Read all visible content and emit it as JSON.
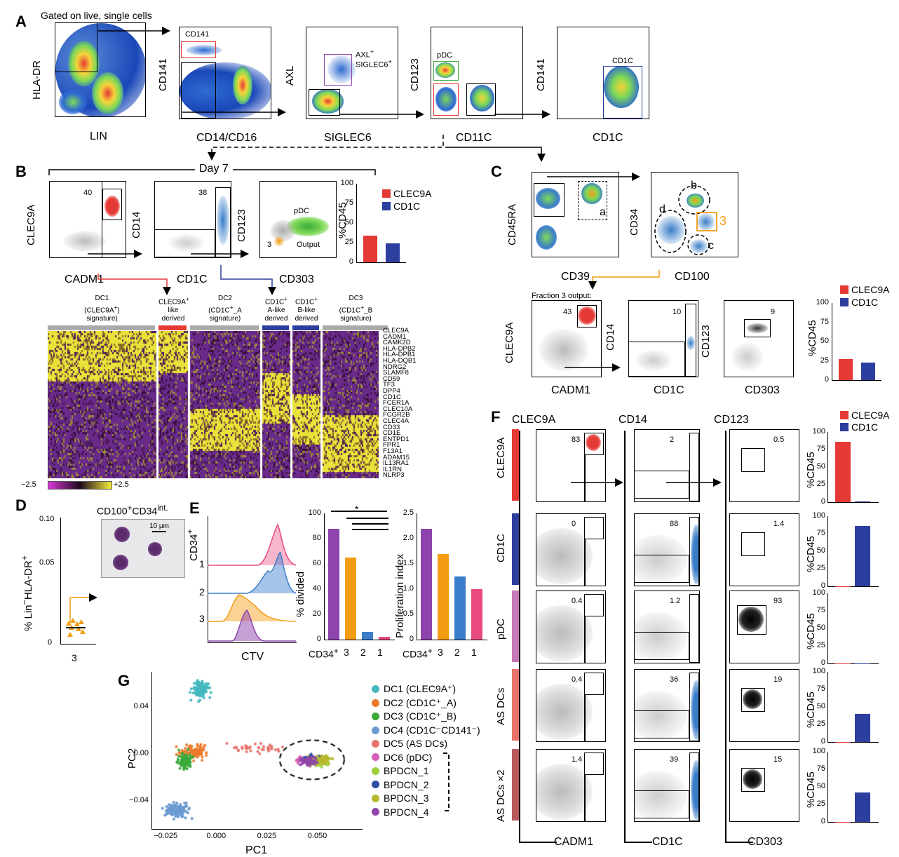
{
  "panelA": {
    "letter": "A",
    "gated": "Gated on live, single cells",
    "p1": {
      "x": "LIN",
      "y": "HLA-DR"
    },
    "p2": {
      "x": "CD14/CD16",
      "y": "CD141",
      "gate": "CD141"
    },
    "p3": {
      "x": "SIGLEC6",
      "y": "AXL",
      "gate1": "AXL",
      "gate1sup": "+",
      "gate2": "SIGLEC6",
      "gate2sup": "+"
    },
    "p4": {
      "x": "CD11C",
      "y": "CD123",
      "gate": "pDC"
    },
    "p5": {
      "x": "CD1C",
      "y": "CD141",
      "gate": "CD1C"
    },
    "ticks": {
      "t105": "10",
      "t104": "10",
      "t103": "10",
      "t0": "0",
      "tneg": "-10"
    }
  },
  "panelB": {
    "letter": "B",
    "day": "Day 7",
    "p1": {
      "x": "CADM1",
      "y": "CLEC9A",
      "num": "40"
    },
    "p2": {
      "x": "CD1C",
      "y": "CD14",
      "num": "38"
    },
    "p3": {
      "x": "CD303",
      "y": "CD123",
      "pdc": "pDC",
      "three": "3",
      "output": "Output"
    },
    "bar": {
      "y": "%CD45",
      "ticks": [
        "100",
        "75",
        "50",
        "25",
        "0"
      ],
      "legend": [
        "CLEC9A",
        "CD1C"
      ],
      "values": [
        34,
        24
      ]
    },
    "heat": {
      "groups": [
        {
          "l1": "DC1",
          "l2": "(CLEC9A",
          "sup": "+",
          "l3": "signature)"
        },
        {
          "l1": "CLEC9A",
          "sup": "+",
          "l2": "like",
          "l3": "derived"
        },
        {
          "l1": "DC2",
          "l2": "(CD1C",
          "sup": "+",
          "l2b": "_A",
          "l3": "signature)"
        },
        {
          "l1": "CD1C",
          "sup": "+",
          "l2": "A-like",
          "l3": "derived"
        },
        {
          "l1": "CD1C",
          "sup": "+",
          "l2": "B-like",
          "l3": "derived"
        },
        {
          "l1": "DC3",
          "l2": "(CD1C",
          "sup": "+",
          "l2b": "_B",
          "l3": "signature)"
        }
      ],
      "genes": [
        "CLEC9A",
        "CADM1",
        "CAMK2D",
        "HLA-DPB2",
        "HLA-DPB1",
        "HLA-DQB1",
        "NDRG2",
        "SLAMF8",
        "CD59",
        "TF3",
        "DPP4",
        "CD1C",
        "FCER1A",
        "CLEC10A",
        "FCGR2B",
        "CLEC4A",
        "CD33",
        "CD1E",
        "ENTPD1",
        "FPR1",
        "F13A1",
        "ADAM15",
        "IL13RA1",
        "IL1RN",
        "NLRP3"
      ],
      "scale_min": "−2.5",
      "scale_max": "+2.5"
    }
  },
  "panelC": {
    "letter": "C",
    "p1": {
      "x": "CD39",
      "y": "CD45RA",
      "gate": "a"
    },
    "p2": {
      "x": "CD100",
      "y": "CD34",
      "b": "b",
      "c": "c",
      "d": "d",
      "three": "3"
    },
    "fraction": "Fraction 3 output:",
    "q1": {
      "x": "CADM1",
      "y": "CLEC9A",
      "num": "43"
    },
    "q2": {
      "x": "CD1C",
      "y": "CD14",
      "num": "10"
    },
    "q3": {
      "x": "CD303",
      "y": "CD123",
      "num": "9"
    },
    "bar": {
      "y": "%CD45",
      "ticks": [
        "100",
        "75",
        "50",
        "25",
        "0"
      ],
      "legend": [
        "CLEC9A",
        "CD1C"
      ],
      "values": [
        27,
        23
      ]
    }
  },
  "panelD": {
    "letter": "D",
    "title": "CD100",
    "title_sup": "+",
    "title2": "CD34",
    "title2_sup": "int.",
    "scale": "10 μm",
    "ylab": "% Lin",
    "ylab_sup": "−",
    "ylab2": "HLA-DR",
    "ylab2_sup": "+",
    "ticks": [
      "0.10",
      "0.05",
      "0"
    ],
    "x": "3"
  },
  "panelE": {
    "letter": "E",
    "ylab": "CD34",
    "ylab_sup": "+",
    "xlab": "CTV",
    "rows": [
      "1",
      "2",
      "3"
    ],
    "divided": {
      "y": "% divided",
      "ticks": [
        "100",
        "80",
        "60",
        "40",
        "20",
        "0"
      ],
      "cats": [
        "CD34",
        "3",
        "2",
        "1"
      ],
      "cat_sup": "+",
      "values": [
        88,
        65,
        6,
        2
      ],
      "star": "*"
    },
    "prolif": {
      "y": "Proliferation index",
      "ticks": [
        "2.5",
        "2.0",
        "1.5",
        "1.0",
        "0.5",
        "0"
      ],
      "cats": [
        "CD34",
        "3",
        "2",
        "1"
      ],
      "cat_sup": "+",
      "values": [
        2.2,
        1.7,
        1.25,
        1.0
      ]
    }
  },
  "panelF": {
    "letter": "F",
    "cols": [
      "CLEC9A",
      "CD14",
      "CD123"
    ],
    "xlabs": [
      "CADM1",
      "CD1C",
      "CD303"
    ],
    "rows": [
      {
        "name": "CLEC9A",
        "n1": "83",
        "n2": "2",
        "n3": "0.5",
        "vals": [
          86,
          1.5
        ]
      },
      {
        "name": "CD1C",
        "n1": "0",
        "n2": "88",
        "n3": "1.4",
        "vals": [
          0.5,
          86
        ]
      },
      {
        "name": "pDC",
        "n1": "0.4",
        "n2": "1.2",
        "n3": "93",
        "vals": [
          0.5,
          0.5
        ]
      },
      {
        "name": "AS DCs",
        "n1": "0.4",
        "n2": "36",
        "n3": "19",
        "vals": [
          0.5,
          40
        ]
      },
      {
        "name": "AS DCs ×2",
        "n1": "1.4",
        "n2": "39",
        "n3": "15",
        "vals": [
          0.5,
          42
        ]
      }
    ],
    "bar_y": "%CD45",
    "bar_ticks": [
      "100",
      "75",
      "50",
      "25",
      "0"
    ],
    "legend": [
      "CLEC9A",
      "CD1C"
    ]
  },
  "panelG": {
    "letter": "G",
    "xlab": "PC1",
    "ylab": "PC2",
    "xticks": [
      "−0.025",
      "0.000",
      "0.025",
      "0.050"
    ],
    "yticks": [
      "0.04",
      "0.00",
      "−0.04"
    ],
    "legend": [
      {
        "label": "DC1 (CLEC9A⁺)",
        "color": "#45b8bf"
      },
      {
        "label": "DC2 (CD1C⁺_A)",
        "color": "#ec7a2a"
      },
      {
        "label": "DC3 (CD1C⁺_B)",
        "color": "#3aaa3a"
      },
      {
        "label": "DC4 (CD1C⁻CD141⁻)",
        "color": "#6b9bd1"
      },
      {
        "label": "DC5 (AS DCs)",
        "color": "#e8736a"
      },
      {
        "label": "DC6 (pDC)",
        "color": "#d35fb7"
      },
      {
        "label": "BPDCN_1",
        "color": "#9fcf3a"
      },
      {
        "label": "BPDCN_2",
        "color": "#2c4fa3"
      },
      {
        "label": "BPDCN_3",
        "color": "#b8b830"
      },
      {
        "label": "BPDCN_4",
        "color": "#8e46a8"
      }
    ]
  },
  "colors": {
    "red": "#e53935",
    "blue": "#2c3e9e",
    "purple": "#8e44ad",
    "orange": "#f39c12",
    "pink": "#e84a7f",
    "lblue": "#3a7dc9"
  }
}
